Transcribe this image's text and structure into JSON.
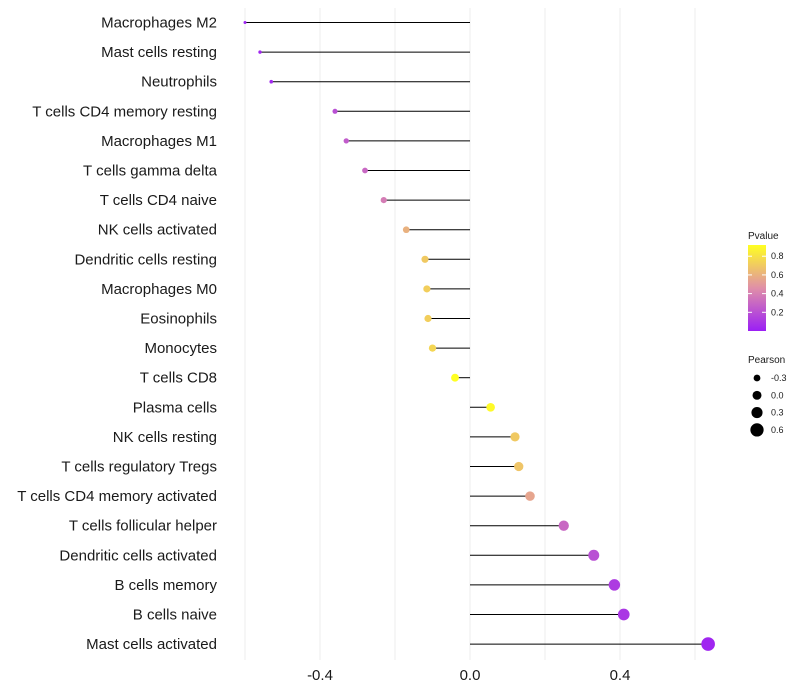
{
  "chart_data": {
    "type": "lollipop",
    "title": "",
    "xlabel": "",
    "ylabel": "",
    "xlim": [
      -0.6,
      0.6
    ],
    "x_ticks": [
      -0.4,
      0.0,
      0.4
    ],
    "x_tick_labels": [
      "-0.4",
      "0.0",
      "0.4"
    ],
    "categories": [
      "Macrophages M2",
      "Mast cells resting",
      "Neutrophils",
      "T cells CD4 memory resting",
      "Macrophages M1",
      "T cells gamma delta",
      "T cells CD4 naive",
      "NK cells activated",
      "Dendritic cells resting",
      "Macrophages M0",
      "Eosinophils",
      "Monocytes",
      "T cells CD8",
      "Plasma cells",
      "NK cells resting",
      "T cells regulatory  Tregs ",
      "T cells CD4 memory activated",
      "T cells follicular helper",
      "Dendritic cells activated",
      "B cells memory",
      "B cells naive",
      "Mast cells activated"
    ],
    "pearson": [
      -0.6,
      -0.56,
      -0.53,
      -0.36,
      -0.33,
      -0.28,
      -0.23,
      -0.17,
      -0.12,
      -0.115,
      -0.112,
      -0.1,
      -0.04,
      0.055,
      0.12,
      0.13,
      0.16,
      0.25,
      0.33,
      0.385,
      0.41,
      0.635
    ],
    "pvalue": [
      0.02,
      0.03,
      0.04,
      0.2,
      0.25,
      0.3,
      0.38,
      0.6,
      0.7,
      0.72,
      0.72,
      0.75,
      0.92,
      0.9,
      0.7,
      0.68,
      0.55,
      0.3,
      0.2,
      0.12,
      0.1,
      0.03
    ],
    "legend": {
      "pvalue_title": "Pvalue",
      "pvalue_ticks": [
        0.8,
        0.6,
        0.4,
        0.2
      ],
      "pvalue_tick_labels": [
        "0.8",
        "0.6",
        "0.4",
        "0.2"
      ],
      "pvalue_range": [
        0.0,
        0.92
      ],
      "color_low": "#9b1ff5",
      "color_mid": "#e08fa8",
      "color_high": "#ffff22",
      "pearson_title": "Pearson",
      "pearson_values": [
        -0.3,
        0.0,
        0.3,
        0.6
      ],
      "pearson_labels": [
        "-0.3",
        "0.0",
        "0.3",
        "0.6"
      ]
    },
    "grid": true
  }
}
